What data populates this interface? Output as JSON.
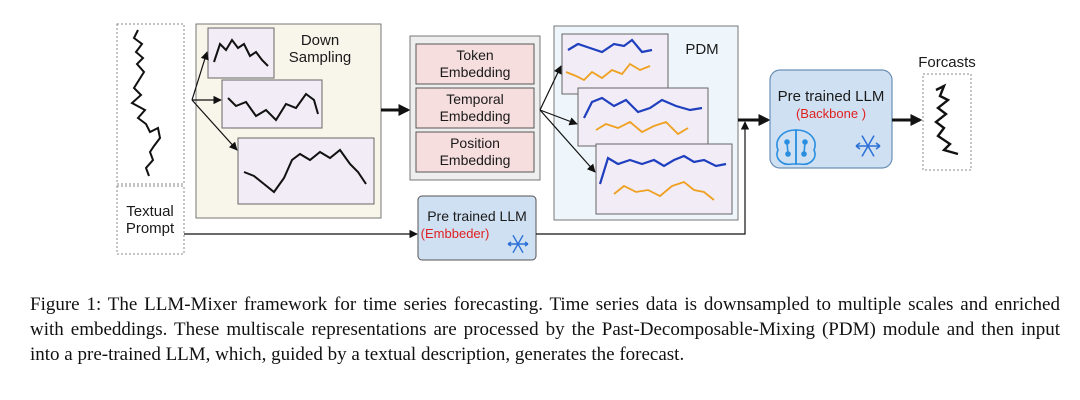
{
  "diagram": {
    "input_label": [
      "Textual",
      "Prompt"
    ],
    "downsampling_label": [
      "Down",
      "Sampling"
    ],
    "embeddings": [
      {
        "lines": [
          "Token",
          "Embedding"
        ]
      },
      {
        "lines": [
          "Temporal",
          "Embedding"
        ]
      },
      {
        "lines": [
          "Position",
          "Embedding"
        ]
      }
    ],
    "pdm_label": "PDM",
    "backbone": {
      "title": "Pre trained LLM",
      "subtitle": "(Backbone )"
    },
    "embedder": {
      "title": "Pre trained LLM",
      "subtitle": "(Embbeder)"
    },
    "output_label": "Forcasts",
    "colors": {
      "series_blue": "#1f3fbf",
      "series_orange": "#f0a020",
      "llm_subtitle": "#e02020",
      "llm_box": "#cfe0f2",
      "embedding_box": "#f6dede"
    },
    "icons": [
      "brain-icon",
      "snowflake-icon"
    ]
  },
  "caption": "Figure 1: The LLM-Mixer framework for time series forecasting. Time series data is downsampled to multiple scales and enriched with embeddings. These multiscale representations are processed by the Past-Decomposable-Mixing (PDM) module and then input into a pre-trained LLM, which, guided by a textual description, generates the forecast."
}
